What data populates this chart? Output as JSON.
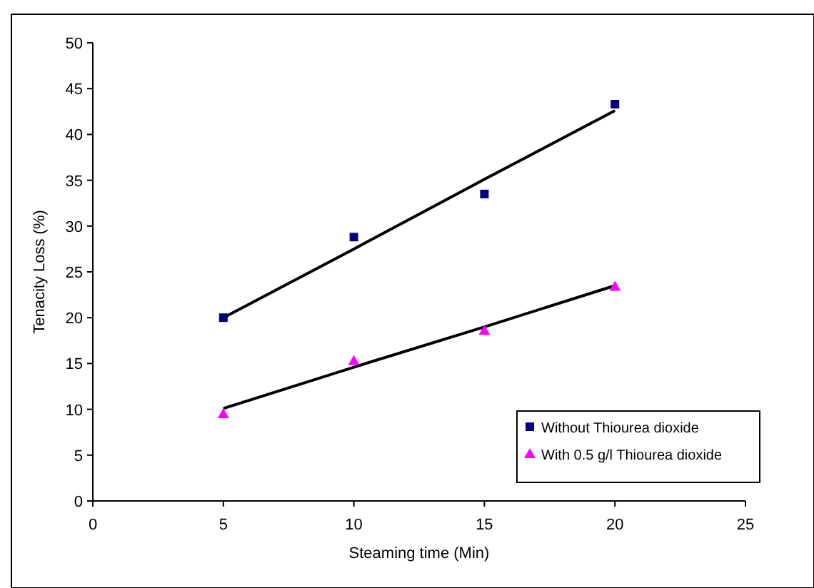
{
  "chart_data": {
    "type": "scatter",
    "xlabel": "Steaming time (Min)",
    "ylabel": "Tenacity Loss (%)",
    "x": [
      5,
      10,
      15,
      20
    ],
    "xlim": [
      0,
      25
    ],
    "xticks": [
      0,
      5,
      10,
      15,
      20,
      25
    ],
    "ylim": [
      0,
      50
    ],
    "yticks": [
      0,
      5,
      10,
      15,
      20,
      25,
      30,
      35,
      40,
      45,
      50
    ],
    "grid": false,
    "legend": "bottom right",
    "series": [
      {
        "name": "Without Thiourea dioxide",
        "color": "#000080",
        "marker": "square",
        "values": [
          20,
          28.8,
          33.5,
          43.3
        ]
      },
      {
        "name": "With 0.5 g/l Thiourea dioxide",
        "color": "#ff00ff",
        "marker": "triangle",
        "values": [
          9.5,
          15.3,
          18.6,
          23.4
        ]
      },
      {
        "type": "line",
        "color": "#000000",
        "values": [
          20,
          27.5,
          35.1,
          42.6
        ]
      },
      {
        "type": "line",
        "color": "#000000",
        "values": [
          10.1,
          14.6,
          19,
          23.5
        ]
      }
    ]
  }
}
